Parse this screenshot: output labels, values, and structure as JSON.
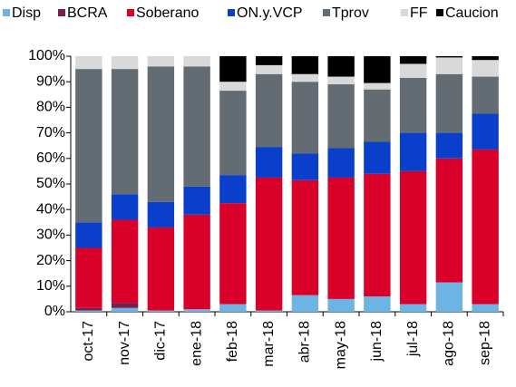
{
  "chart_data": {
    "type": "bar",
    "stacked": true,
    "categories": [
      "oct-17",
      "nov-17",
      "dic-17",
      "ene-18",
      "feb-18",
      "mar-18",
      "abr-18",
      "may-18",
      "jun-18",
      "jul-18",
      "ago-18",
      "sep-18"
    ],
    "series": [
      {
        "name": "Disp",
        "color": "#6cb4e4",
        "values": [
          0.5,
          1.5,
          0.5,
          1,
          3,
          0.5,
          6.5,
          5,
          6,
          3,
          11.5,
          3
        ]
      },
      {
        "name": "BCRA",
        "color": "#7b1e4a",
        "values": [
          1,
          2,
          0,
          0,
          0,
          0,
          0,
          0,
          0,
          0,
          0,
          0
        ]
      },
      {
        "name": "Soberano",
        "color": "#d9002a",
        "values": [
          23.5,
          32.5,
          32.5,
          37,
          39.5,
          52,
          45,
          47.5,
          48,
          52,
          48.5,
          60.5
        ]
      },
      {
        "name": "ON.y.VCP",
        "color": "#0a3fcc",
        "values": [
          10,
          10,
          10,
          11,
          11,
          12,
          10.5,
          11.5,
          12.5,
          15,
          10,
          14
        ]
      },
      {
        "name": "Tprov",
        "color": "#636b73",
        "values": [
          60,
          49,
          53,
          47,
          33,
          28.5,
          28,
          25,
          20.5,
          21.5,
          23,
          14.5
        ]
      },
      {
        "name": "FF",
        "color": "#d9d9d9",
        "values": [
          5,
          5,
          4,
          4,
          3.5,
          3.5,
          3,
          3,
          2.5,
          5.5,
          6.5,
          6.5
        ]
      },
      {
        "name": "Caucion",
        "color": "#000000",
        "values": [
          0,
          0,
          0,
          0,
          10,
          3.5,
          7,
          8,
          10.5,
          3,
          0.5,
          1.5
        ]
      }
    ],
    "ylim": [
      0,
      100
    ],
    "yticks": [
      {
        "value": 0,
        "label": "0%"
      },
      {
        "value": 10,
        "label": "10%"
      },
      {
        "value": 20,
        "label": "20%"
      },
      {
        "value": 30,
        "label": "30%"
      },
      {
        "value": 40,
        "label": "40%"
      },
      {
        "value": 50,
        "label": "50%"
      },
      {
        "value": 60,
        "label": "60%"
      },
      {
        "value": 70,
        "label": "70%"
      },
      {
        "value": 80,
        "label": "80%"
      },
      {
        "value": 90,
        "label": "90%"
      },
      {
        "value": 100,
        "label": "100%"
      }
    ],
    "legend": "top"
  }
}
